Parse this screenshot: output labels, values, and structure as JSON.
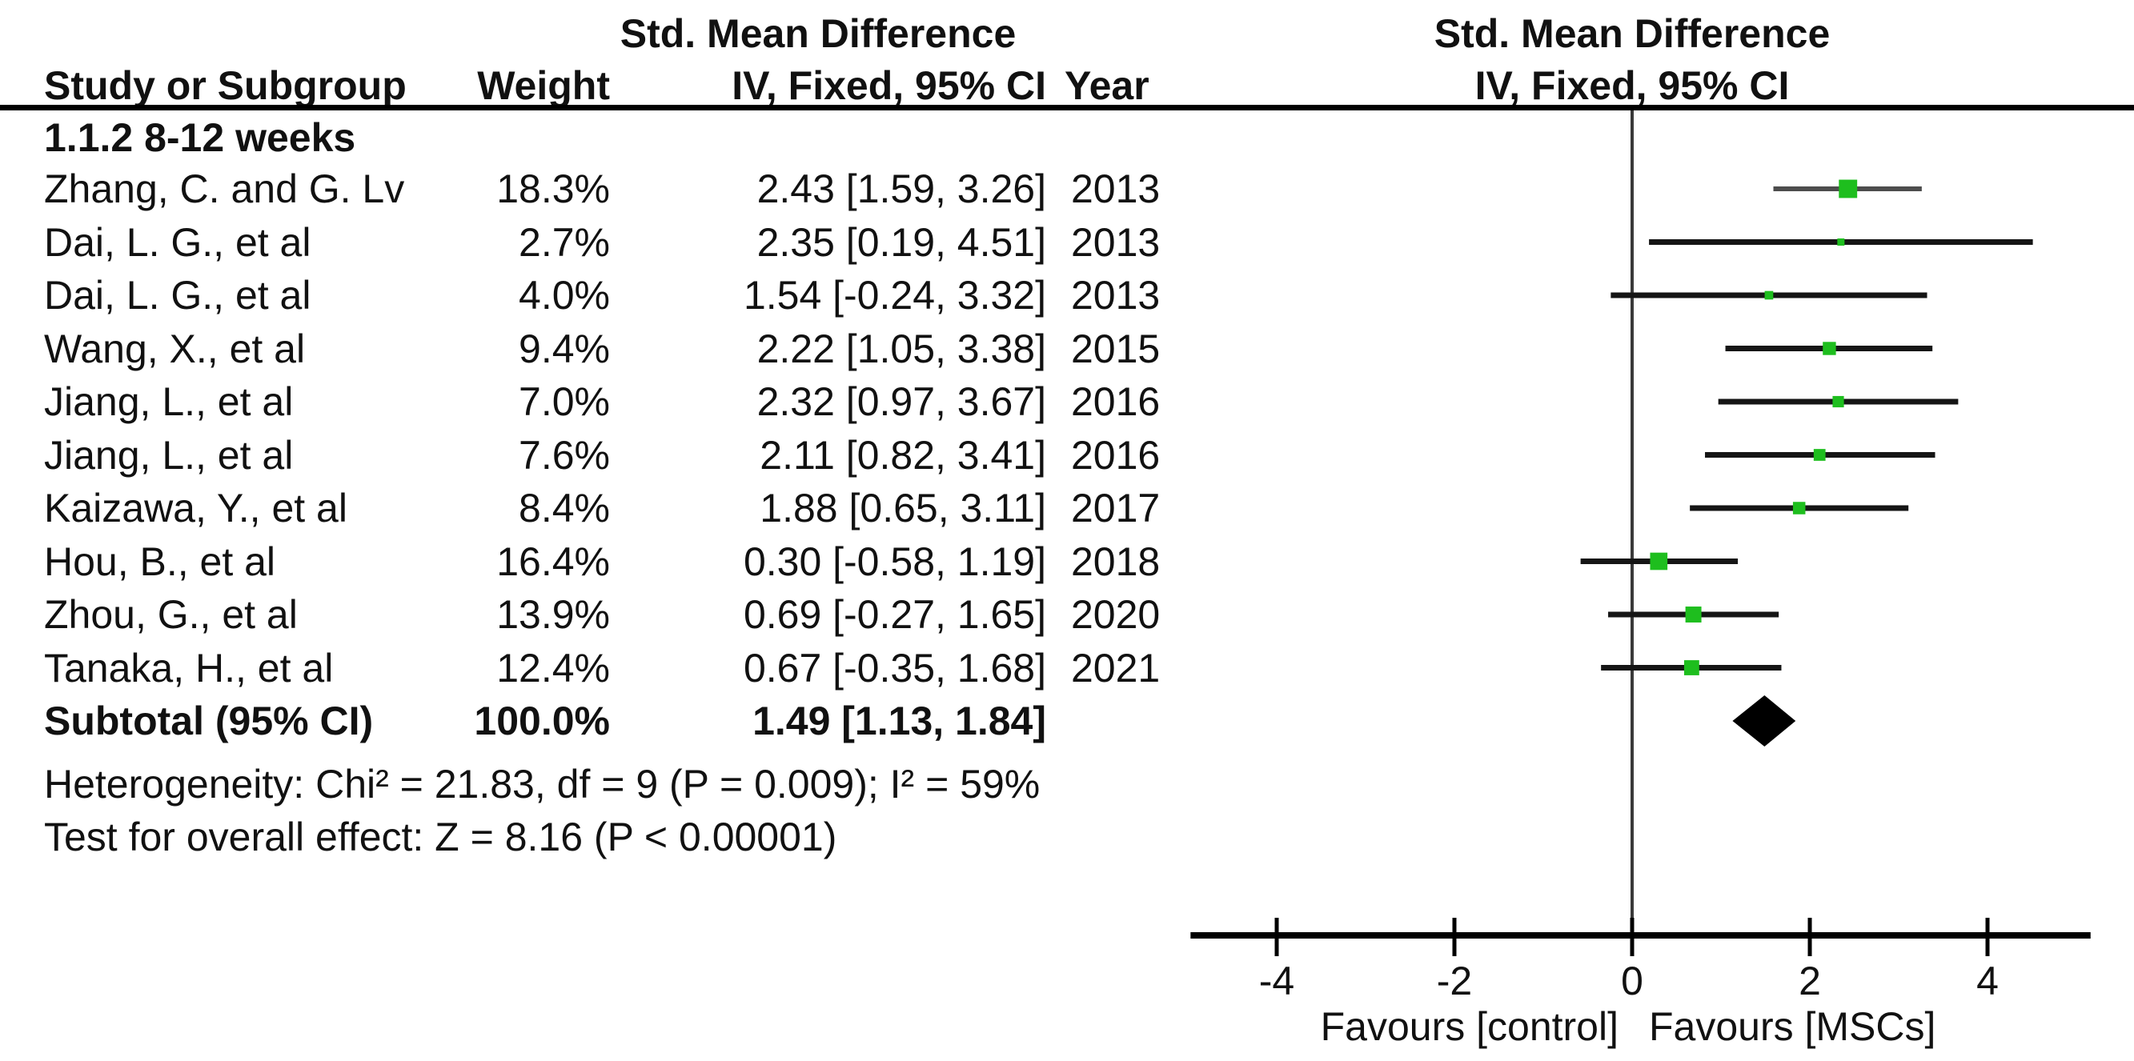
{
  "header": {
    "effect_label": "Std. Mean Difference",
    "col_study": "Study or Subgroup",
    "col_weight": "Weight",
    "col_method": "IV, Fixed, 95% CI",
    "col_year": "Year"
  },
  "subgroup": {
    "title": "1.1.2 8-12 weeks"
  },
  "chart_data": {
    "type": "forest",
    "title": "Std. Mean Difference, IV, Fixed, 95% CI",
    "studies": [
      {
        "name": "Zhang, C. and G. Lv",
        "weight_label": "18.3%",
        "weight_pct": 18.3,
        "est": 2.43,
        "lo": 1.59,
        "hi": 3.26,
        "ci_label": "2.43 [1.59, 3.26]",
        "year": "2013"
      },
      {
        "name": "Dai, L. G., et al",
        "weight_label": "2.7%",
        "weight_pct": 2.7,
        "est": 2.35,
        "lo": 0.19,
        "hi": 4.51,
        "ci_label": "2.35 [0.19, 4.51]",
        "year": "2013"
      },
      {
        "name": "Dai, L. G., et al",
        "weight_label": "4.0%",
        "weight_pct": 4.0,
        "est": 1.54,
        "lo": -0.24,
        "hi": 3.32,
        "ci_label": "1.54 [-0.24, 3.32]",
        "year": "2013"
      },
      {
        "name": "Wang, X., et al",
        "weight_label": "9.4%",
        "weight_pct": 9.4,
        "est": 2.22,
        "lo": 1.05,
        "hi": 3.38,
        "ci_label": "2.22 [1.05, 3.38]",
        "year": "2015"
      },
      {
        "name": "Jiang, L., et al",
        "weight_label": "7.0%",
        "weight_pct": 7.0,
        "est": 2.32,
        "lo": 0.97,
        "hi": 3.67,
        "ci_label": "2.32 [0.97, 3.67]",
        "year": "2016"
      },
      {
        "name": "Jiang, L., et al",
        "weight_label": "7.6%",
        "weight_pct": 7.6,
        "est": 2.11,
        "lo": 0.82,
        "hi": 3.41,
        "ci_label": "2.11 [0.82, 3.41]",
        "year": "2016"
      },
      {
        "name": "Kaizawa, Y., et al",
        "weight_label": "8.4%",
        "weight_pct": 8.4,
        "est": 1.88,
        "lo": 0.65,
        "hi": 3.11,
        "ci_label": "1.88 [0.65, 3.11]",
        "year": "2017"
      },
      {
        "name": "Hou, B., et al",
        "weight_label": "16.4%",
        "weight_pct": 16.4,
        "est": 0.3,
        "lo": -0.58,
        "hi": 1.19,
        "ci_label": "0.30 [-0.58, 1.19]",
        "year": "2018"
      },
      {
        "name": "Zhou, G., et al",
        "weight_label": "13.9%",
        "weight_pct": 13.9,
        "est": 0.69,
        "lo": -0.27,
        "hi": 1.65,
        "ci_label": "0.69 [-0.27, 1.65]",
        "year": "2020"
      },
      {
        "name": "Tanaka, H., et al",
        "weight_label": "12.4%",
        "weight_pct": 12.4,
        "est": 0.67,
        "lo": -0.35,
        "hi": 1.68,
        "ci_label": "0.67 [-0.35, 1.68]",
        "year": "2021"
      }
    ],
    "subtotal": {
      "name": "Subtotal (95% CI)",
      "weight_label": "100.0%",
      "est": 1.49,
      "lo": 1.13,
      "hi": 1.84,
      "ci_label": "1.49 [1.13, 1.84]"
    },
    "heterogeneity": "Heterogeneity: Chi² = 21.83, df = 9 (P = 0.009); I² = 59%",
    "overall_effect": "Test for overall effect: Z = 8.16 (P < 0.00001)",
    "axis": {
      "ticks": [
        -4,
        -2,
        0,
        2,
        4
      ],
      "xlim": [
        -4.97,
        5.16
      ],
      "favours_left": "Favours [control]",
      "favours_right": "Favours [MSCs]"
    },
    "colors": {
      "marker": "#1ebe1e",
      "diamond": "#000000",
      "ci_line": "#151515"
    }
  }
}
